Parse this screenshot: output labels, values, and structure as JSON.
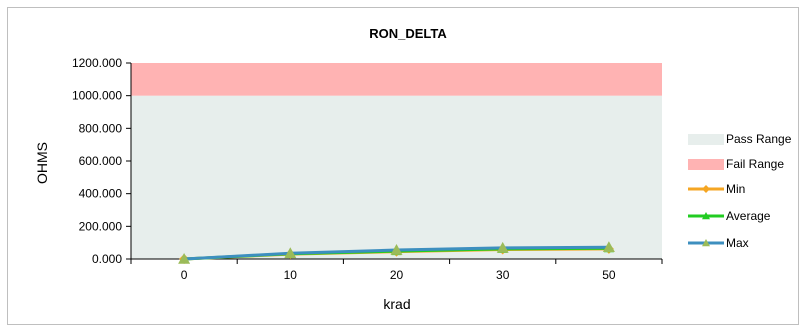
{
  "chart_data": {
    "type": "line",
    "title": "RON_DELTA",
    "xlabel": "krad",
    "ylabel": "OHMS",
    "categories": [
      "0",
      "10",
      "20",
      "30",
      "50"
    ],
    "ylim": [
      0,
      1200
    ],
    "yticks": [
      "0.000",
      "200.000",
      "400.000",
      "600.000",
      "800.000",
      "1000.000",
      "1200.000"
    ],
    "bands": [
      {
        "name": "Pass Range",
        "from": 0,
        "to": 1000,
        "color": "#e7eeec"
      },
      {
        "name": "Fail Range",
        "from": 1000,
        "to": 1200,
        "color": "#ffb3b3"
      }
    ],
    "series": [
      {
        "name": "Min",
        "color": "#f5a623",
        "marker": "diamond",
        "values": [
          0,
          30,
          45,
          58,
          62
        ]
      },
      {
        "name": "Average",
        "color": "#22cc22",
        "marker": "triangle",
        "values": [
          0,
          32,
          48,
          62,
          66
        ]
      },
      {
        "name": "Max",
        "color": "#3d8fbf",
        "marker": "triangle",
        "values": [
          0,
          35,
          55,
          68,
          72
        ]
      }
    ],
    "legend_position": "right",
    "grid": false
  }
}
